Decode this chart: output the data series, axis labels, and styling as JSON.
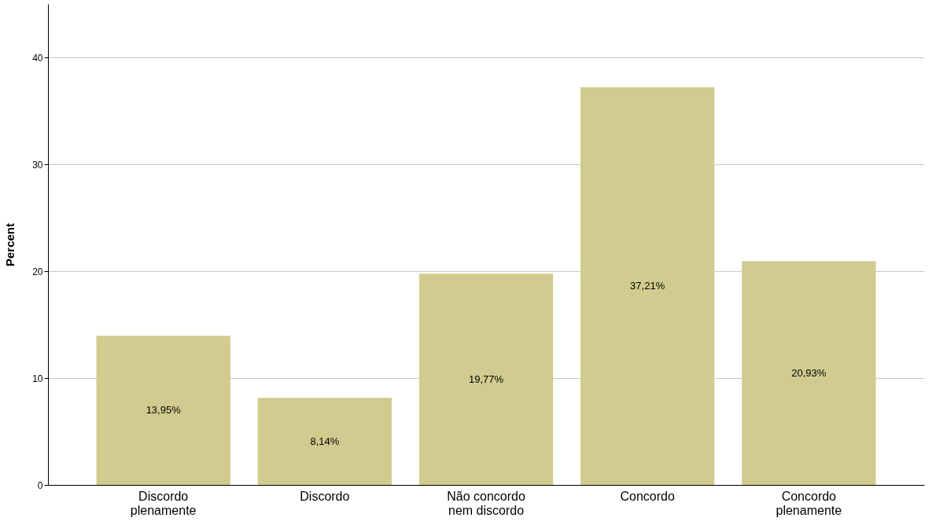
{
  "chart_data": {
    "type": "bar",
    "categories": [
      "Discordo plenamente",
      "Discordo",
      "Não concordo nem discordo",
      "Concordo",
      "Concordo plenamente"
    ],
    "values": [
      13.95,
      8.14,
      19.77,
      37.21,
      20.93
    ],
    "value_labels": [
      "13,95%",
      "8,14%",
      "19,77%",
      "37,21%",
      "20,93%"
    ],
    "color": "#d1cb8f",
    "ylabel": "Percent",
    "ylim": [
      0,
      45
    ],
    "yticks": [
      0,
      10,
      20,
      30,
      40
    ],
    "grid": "y"
  }
}
